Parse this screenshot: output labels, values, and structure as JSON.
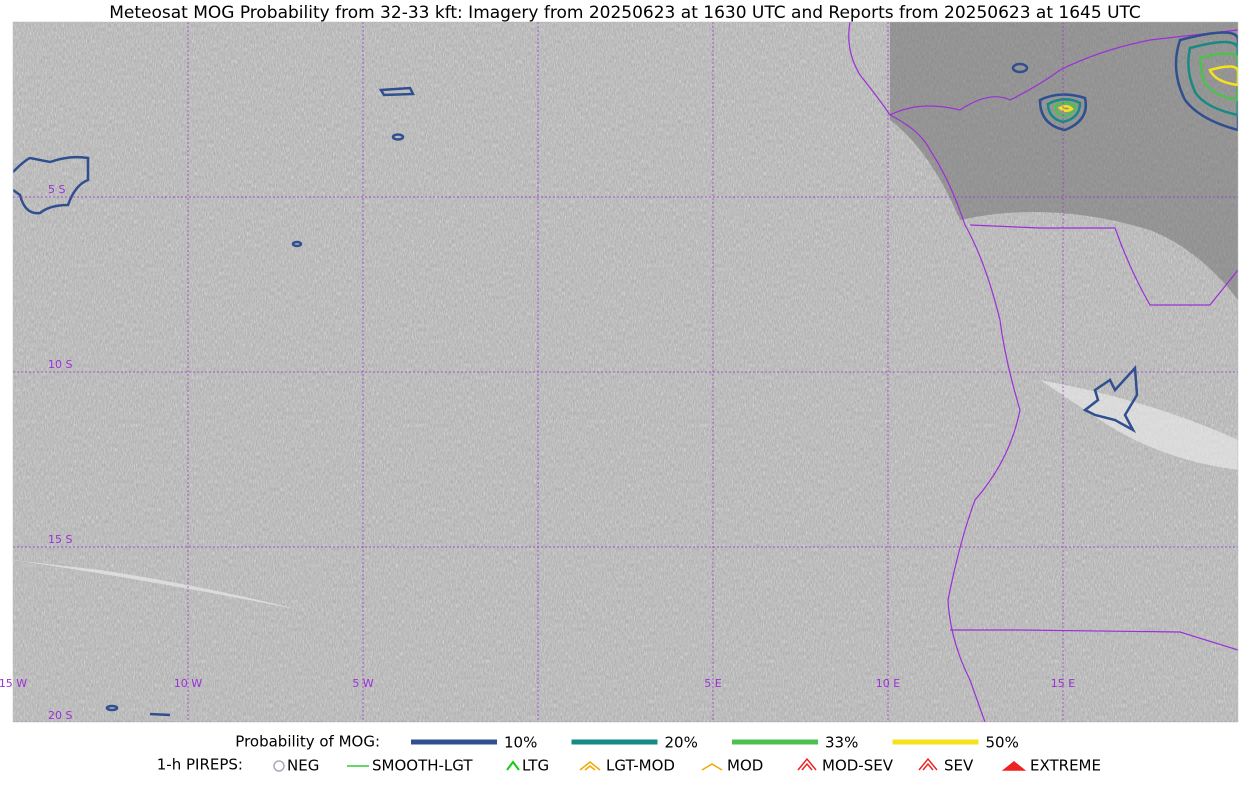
{
  "title": "Meteosat MOG Probability from 32-33 kft: Imagery from 20250623 at 1630 UTC and Reports from 20250623 at 1645 UTC",
  "map": {
    "lat_labels": [
      "5 S",
      "10 S",
      "15 S",
      "20 S"
    ],
    "lon_labels": [
      "15 W",
      "10 W",
      "5 W",
      "5 E",
      "10 E",
      "15 E"
    ]
  },
  "legend": {
    "probability": {
      "label": "Probability of MOG:",
      "items": [
        {
          "name": "10%",
          "color": "#2f4f8f"
        },
        {
          "name": "20%",
          "color": "#168a84"
        },
        {
          "name": "33%",
          "color": "#4cc150"
        },
        {
          "name": "50%",
          "color": "#f5e11d"
        }
      ]
    },
    "pireps": {
      "label": "1-h PIREPS:",
      "items": [
        "NEG",
        "SMOOTH-LGT",
        "LTG",
        "LGT-MOD",
        "MOD",
        "MOD-SEV",
        "SEV",
        "EXTREME"
      ]
    }
  }
}
